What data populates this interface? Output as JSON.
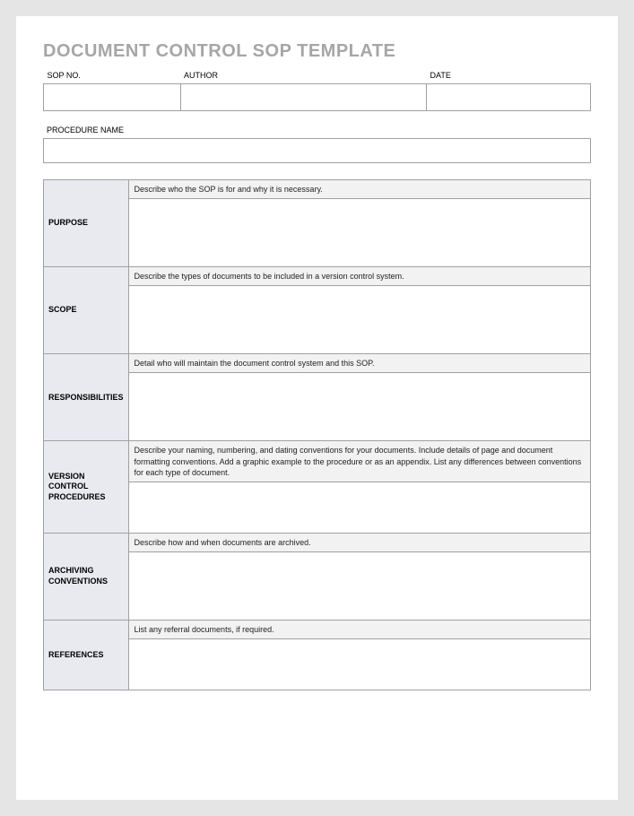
{
  "title": "DOCUMENT CONTROL SOP TEMPLATE",
  "header": {
    "sop_no_label": "SOP NO.",
    "author_label": "AUTHOR",
    "date_label": "DATE",
    "sop_no_value": "",
    "author_value": "",
    "date_value": ""
  },
  "procedure": {
    "label": "PROCEDURE NAME",
    "value": ""
  },
  "sections": [
    {
      "label": "PURPOSE",
      "hint": "Describe who the SOP is for and why it is necessary.",
      "content": "",
      "fill": "sec-fill"
    },
    {
      "label": "SCOPE",
      "hint": "Describe the types of documents to be included in a version control system.",
      "content": "",
      "fill": "sec-fill"
    },
    {
      "label": "RESPONSIBILITIES",
      "hint": "Detail who will maintain the document control system and this SOP.",
      "content": "",
      "fill": "sec-fill"
    },
    {
      "label": "VERSION CONTROL PROCEDURES",
      "hint": "Describe your naming, numbering, and dating conventions for your documents. Include details of page and document formatting conventions.  Add a graphic example to the procedure or as an appendix.  List any differences between conventions for each type of document.",
      "content": "",
      "fill": "sec-fill-sm"
    },
    {
      "label": "ARCHIVING CONVENTIONS",
      "hint": "Describe how and when documents are archived.",
      "content": "",
      "fill": "sec-fill"
    },
    {
      "label": "REFERENCES",
      "hint": "List any referral documents, if required.",
      "content": "",
      "fill": "sec-fill-sm"
    }
  ]
}
